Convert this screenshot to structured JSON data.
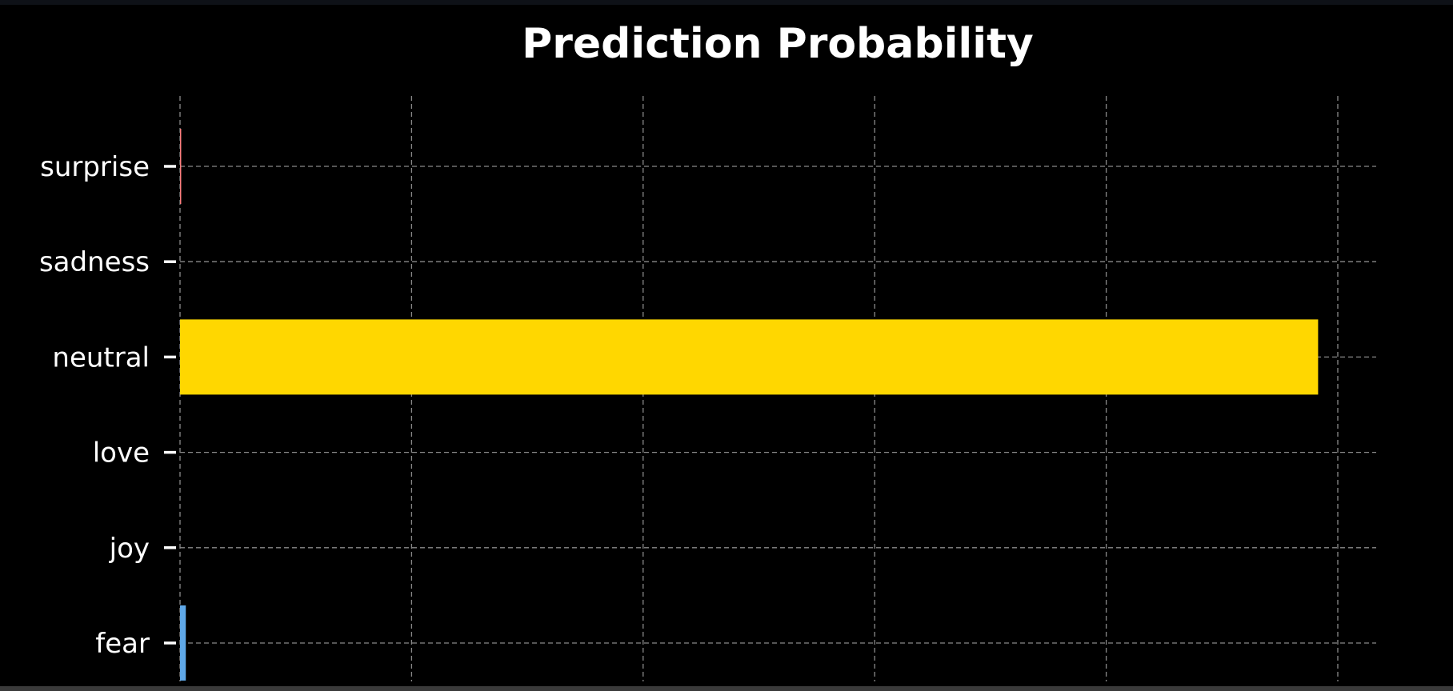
{
  "chart_data": {
    "type": "bar",
    "orientation": "horizontal",
    "title": "Prediction Probability",
    "xlabel": "",
    "ylabel": "",
    "categories": [
      "fear",
      "joy",
      "love",
      "neutral",
      "sadness",
      "surprise"
    ],
    "values": [
      0.005,
      0.0,
      0.0,
      0.983,
      0.0,
      0.001
    ],
    "colors": [
      "#5fa8e8",
      "#5fa8e8",
      "#5fa8e8",
      "#ffd700",
      "#5fa8e8",
      "#ff7f7f"
    ],
    "xlim": [
      0,
      1.0
    ],
    "x_gridlines": [
      0.0,
      0.2,
      0.4,
      0.6,
      0.8,
      1.0
    ],
    "grid": true,
    "grid_style": "dashed",
    "x_tick_labels_visible": false,
    "legend": "none"
  },
  "theme": {
    "page_background": "#0e1117",
    "plot_background": "#000000",
    "grid_color": "#8a8a8a",
    "text_color": "#ffffff"
  }
}
